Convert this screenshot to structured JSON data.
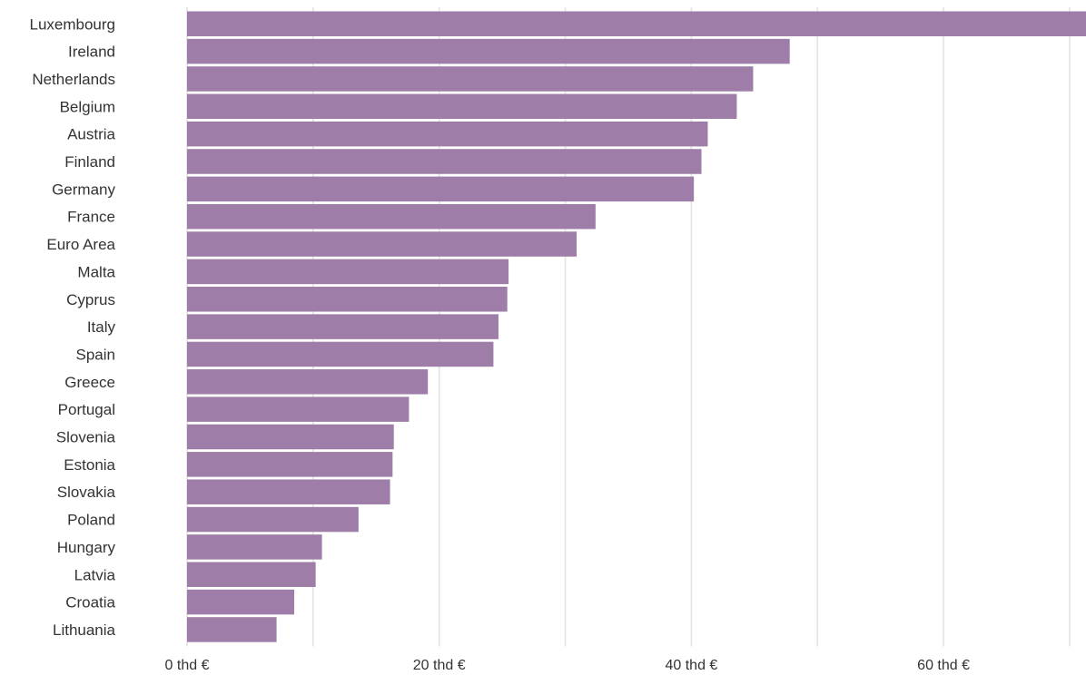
{
  "chart_data": {
    "type": "bar",
    "orientation": "horizontal",
    "title": "",
    "xlabel": "",
    "ylabel": "",
    "categories": [
      "Luxembourg",
      "Ireland",
      "Netherlands",
      "Belgium",
      "Austria",
      "Finland",
      "Germany",
      "France",
      "Euro Area",
      "Malta",
      "Cyprus",
      "Italy",
      "Spain",
      "Greece",
      "Portugal",
      "Slovenia",
      "Estonia",
      "Slovakia",
      "Poland",
      "Hungary",
      "Latvia",
      "Croatia",
      "Lithuania"
    ],
    "values": [
      71.5,
      47.8,
      44.9,
      43.6,
      41.3,
      40.8,
      40.2,
      32.4,
      30.9,
      25.5,
      25.4,
      24.7,
      24.3,
      19.1,
      17.6,
      16.4,
      16.3,
      16.1,
      13.6,
      10.7,
      10.2,
      8.5,
      7.1
    ],
    "xlim": [
      0,
      71.3
    ],
    "ticks": [
      {
        "value": 0,
        "label": "0 thd €"
      },
      {
        "value": 20,
        "label": "20 thd €"
      },
      {
        "value": 40,
        "label": "40 thd €"
      },
      {
        "value": 60,
        "label": "60 thd €"
      }
    ],
    "grid": true,
    "bar_color": "#9e7ea8"
  }
}
